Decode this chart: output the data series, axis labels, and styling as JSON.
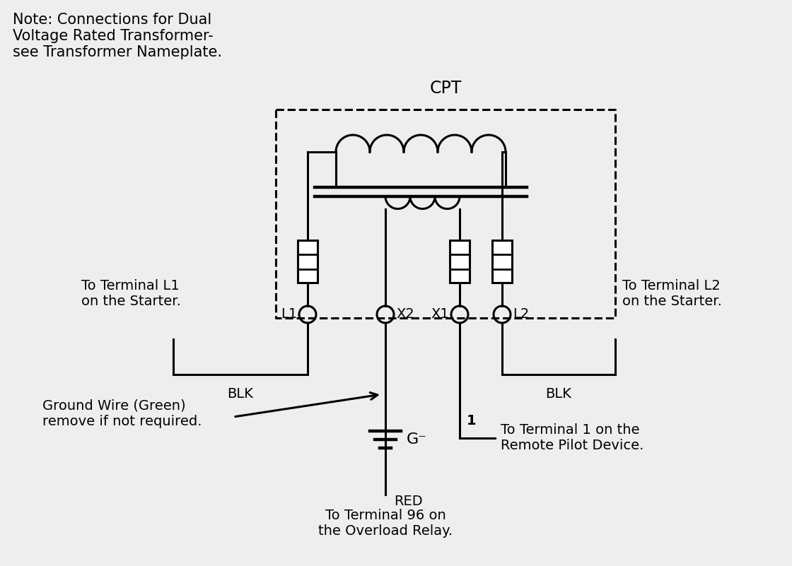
{
  "bg_color": "#eeeeee",
  "line_color": "#000000",
  "line_width": 2.2,
  "title": "CPT",
  "note_text": "Note: Connections for Dual\nVoltage Rated Transformer-\nsee Transformer Nameplate.",
  "label_L1": "L1",
  "label_X2": "X2",
  "label_X1": "X1",
  "label_L2": "L2",
  "label_G": "G",
  "label_1": "1",
  "label_BLK_left": "BLK",
  "label_BLK_right": "BLK",
  "label_RED": "RED",
  "text_L1": "To Terminal L1\non the Starter.",
  "text_L2": "To Terminal L2\non the Starter.",
  "text_ground": "Ground Wire (Green)\nremove if not required.",
  "text_terminal1": "To Terminal 1 on the\nRemote Pilot Device.",
  "text_overload": "To Terminal 96 on\nthe Overload Relay.",
  "font_size_note": 15,
  "font_size_label": 14,
  "font_size_title": 17
}
